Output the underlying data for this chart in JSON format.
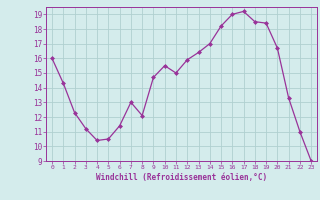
{
  "x": [
    0,
    1,
    2,
    3,
    4,
    5,
    6,
    7,
    8,
    9,
    10,
    11,
    12,
    13,
    14,
    15,
    16,
    17,
    18,
    19,
    20,
    21,
    22,
    23
  ],
  "y": [
    16.0,
    14.3,
    12.3,
    11.2,
    10.4,
    10.5,
    11.4,
    13.0,
    12.1,
    14.7,
    15.5,
    15.0,
    15.9,
    16.4,
    17.0,
    18.2,
    19.0,
    19.2,
    18.5,
    18.4,
    16.7,
    13.3,
    11.0,
    9.0
  ],
  "line_color": "#993399",
  "marker": "D",
  "marker_size": 2,
  "bg_color": "#d4ecec",
  "grid_color": "#b0d0d0",
  "xlabel": "Windchill (Refroidissement éolien,°C)",
  "xlabel_color": "#993399",
  "tick_color": "#993399",
  "ylim": [
    9,
    19.5
  ],
  "xlim": [
    -0.5,
    23.5
  ],
  "yticks": [
    9,
    10,
    11,
    12,
    13,
    14,
    15,
    16,
    17,
    18,
    19
  ],
  "xticks": [
    0,
    1,
    2,
    3,
    4,
    5,
    6,
    7,
    8,
    9,
    10,
    11,
    12,
    13,
    14,
    15,
    16,
    17,
    18,
    19,
    20,
    21,
    22,
    23
  ]
}
